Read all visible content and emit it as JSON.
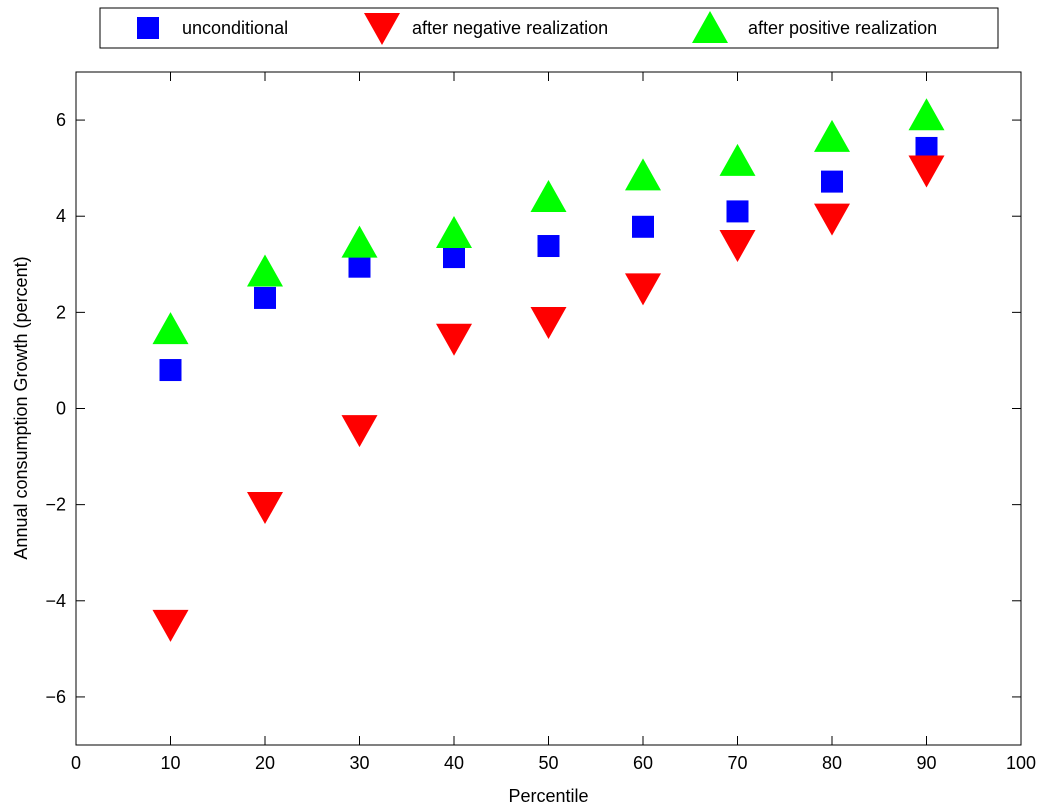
{
  "chart_data": {
    "type": "scatter",
    "xlabel": "Percentile",
    "ylabel": "Annual consumption Growth (percent)",
    "xlim": [
      0,
      100
    ],
    "ylim": [
      -7,
      7
    ],
    "x_ticks": [
      0,
      10,
      20,
      30,
      40,
      50,
      60,
      70,
      80,
      90,
      100
    ],
    "y_ticks": [
      -6,
      -4,
      -2,
      0,
      2,
      4,
      6
    ],
    "x_tick_labels": [
      "0",
      "10",
      "20",
      "30",
      "40",
      "50",
      "60",
      "70",
      "80",
      "90",
      "100"
    ],
    "y_tick_labels": [
      "−6",
      "−4",
      "−2",
      "0",
      "2",
      "4",
      "6"
    ],
    "grid": false,
    "legend_position": "top",
    "x": [
      10,
      20,
      30,
      40,
      50,
      60,
      70,
      80,
      90
    ],
    "series": [
      {
        "name": "unconditional",
        "marker": "square",
        "color": "#0000ff",
        "values": [
          0.8,
          2.3,
          2.95,
          3.15,
          3.38,
          3.78,
          4.1,
          4.72,
          5.42
        ]
      },
      {
        "name": "after negative realization",
        "marker": "triangle-down",
        "color": "#ff0000",
        "values": [
          -4.5,
          -2.05,
          -0.45,
          1.45,
          1.8,
          2.5,
          3.4,
          3.95,
          4.95
        ]
      },
      {
        "name": "after positive realization",
        "marker": "triangle-up",
        "color": "#00ff00",
        "values": [
          1.65,
          2.85,
          3.45,
          3.65,
          4.4,
          4.85,
          5.15,
          5.65,
          6.1
        ]
      }
    ]
  }
}
